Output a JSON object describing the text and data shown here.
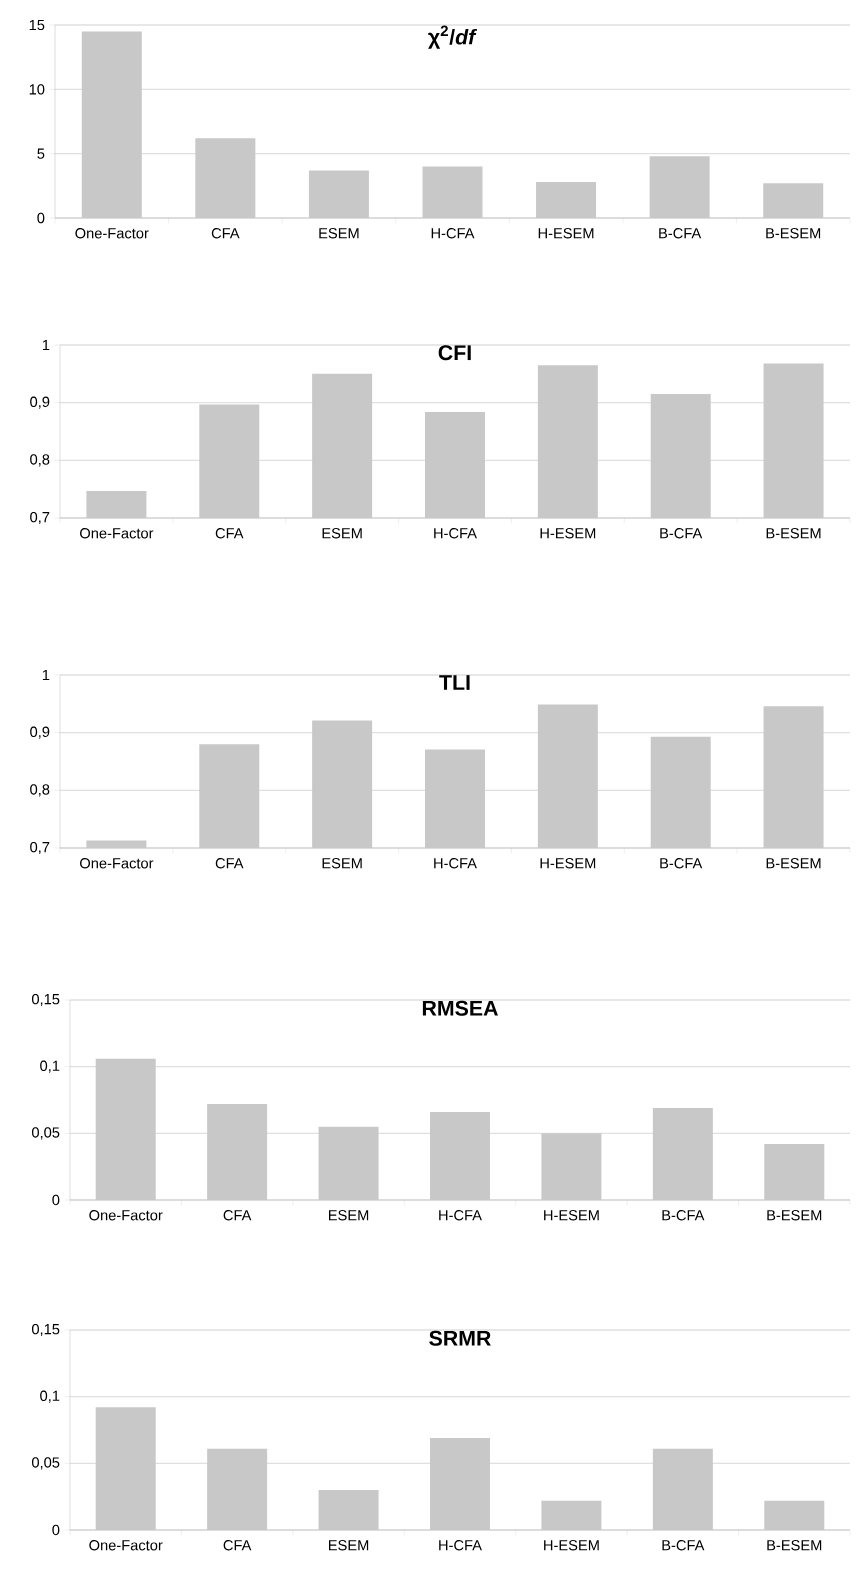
{
  "chart_data": [
    {
      "type": "bar",
      "title": "χ$^{2}$/*df*",
      "categories": [
        "One-Factor",
        "CFA",
        "ESEM",
        "H-CFA",
        "H-ESEM",
        "B-CFA",
        "B-ESEM"
      ],
      "values": [
        14.5,
        6.2,
        3.7,
        4.0,
        2.8,
        4.8,
        2.7
      ],
      "color": "#c8c8c8",
      "ylim": [
        0,
        15
      ],
      "yticks": [
        0,
        5,
        10,
        15
      ],
      "grid": "y"
    },
    {
      "type": "bar",
      "title": "CFI",
      "categories": [
        "One-Factor",
        "CFA",
        "ESEM",
        "H-CFA",
        "H-ESEM",
        "B-CFA",
        "B-ESEM"
      ],
      "values": [
        0.747,
        0.897,
        0.95,
        0.884,
        0.965,
        0.915,
        0.968
      ],
      "color": "#c8c8c8",
      "ylim": [
        0.7,
        1
      ],
      "yticks": [
        {
          "value": 0.7,
          "label": "0,7"
        },
        {
          "value": 0.8,
          "label": "0,8"
        },
        {
          "value": 0.9,
          "label": "0,9"
        },
        1
      ],
      "grid": "y"
    },
    {
      "type": "bar",
      "title": "TLI",
      "categories": [
        "One-Factor",
        "CFA",
        "ESEM",
        "H-CFA",
        "H-ESEM",
        "B-CFA",
        "B-ESEM"
      ],
      "values": [
        0.713,
        0.88,
        0.921,
        0.871,
        0.949,
        0.893,
        0.946
      ],
      "color": "#c8c8c8",
      "ylim": [
        0.7,
        1
      ],
      "yticks": [
        {
          "value": 0.7,
          "label": "0,7"
        },
        {
          "value": 0.8,
          "label": "0,8"
        },
        {
          "value": 0.9,
          "label": "0,9"
        },
        1
      ],
      "grid": "y"
    },
    {
      "type": "bar",
      "title": "RMSEA",
      "categories": [
        "One-Factor",
        "CFA",
        "ESEM",
        "H-CFA",
        "H-ESEM",
        "B-CFA",
        "B-ESEM"
      ],
      "values": [
        0.106,
        0.072,
        0.055,
        0.066,
        0.05,
        0.069,
        0.042
      ],
      "color": "#c8c8c8",
      "ylim": [
        0,
        0.15
      ],
      "yticks": [
        0,
        {
          "value": 0.05,
          "label": "0,05"
        },
        {
          "value": 0.1,
          "label": "0,1"
        },
        {
          "value": 0.15,
          "label": "0,15"
        }
      ],
      "grid": "y"
    },
    {
      "type": "bar",
      "title": "SRMR",
      "categories": [
        "One-Factor",
        "CFA",
        "ESEM",
        "H-CFA",
        "H-ESEM",
        "B-CFA",
        "B-ESEM"
      ],
      "values": [
        0.092,
        0.061,
        0.03,
        0.069,
        0.022,
        0.061,
        0.022
      ],
      "color": "#c8c8c8",
      "ylim": [
        0,
        0.15
      ],
      "yticks": [
        0,
        {
          "value": 0.05,
          "label": "0,05"
        },
        {
          "value": 0.1,
          "label": "0,1"
        },
        {
          "value": 0.15,
          "label": "0,15"
        }
      ],
      "grid": "y"
    }
  ]
}
